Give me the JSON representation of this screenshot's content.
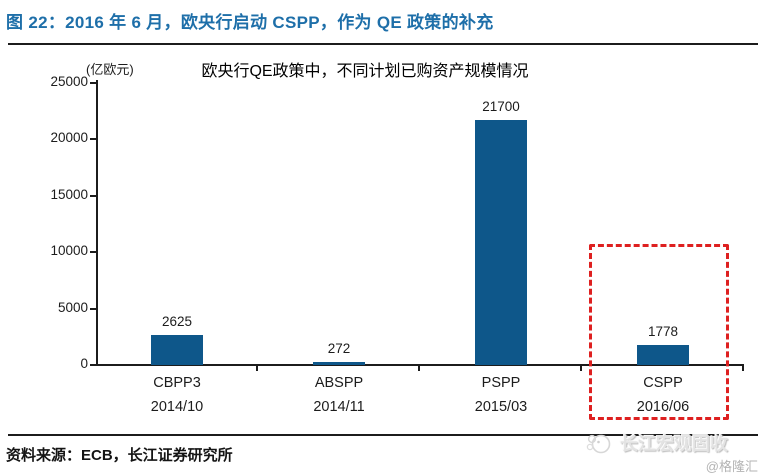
{
  "header": {
    "title": "图 22：2016 年 6 月，欧央行启动 CSPP，作为 QE 政策的补充",
    "title_color": "#1E6FA9"
  },
  "chart_data": {
    "type": "bar",
    "title": "欧央行QE政策中，不同计划已购资产规模情况",
    "unit_label": "(亿欧元)",
    "categories": [
      {
        "name": "CBPP3",
        "date": "2014/10"
      },
      {
        "name": "ABSPP",
        "date": "2014/11"
      },
      {
        "name": "PSPP",
        "date": "2015/03"
      },
      {
        "name": "CSPP",
        "date": "2016/06"
      }
    ],
    "values": [
      2625,
      272,
      21700,
      1778
    ],
    "ylim": [
      0,
      25000
    ],
    "yticks": [
      0,
      5000,
      10000,
      15000,
      20000,
      25000
    ],
    "grid": "off",
    "legend": "none",
    "bar_color": "#0E578A",
    "highlight": {
      "category": "CSPP",
      "style": "red-dashed-box",
      "color": "#DE2020"
    }
  },
  "footer": {
    "source": "资料来源：ECB，长江证券研究所"
  },
  "watermark": {
    "brand": "长江宏观固收",
    "handle": "@格隆汇"
  }
}
